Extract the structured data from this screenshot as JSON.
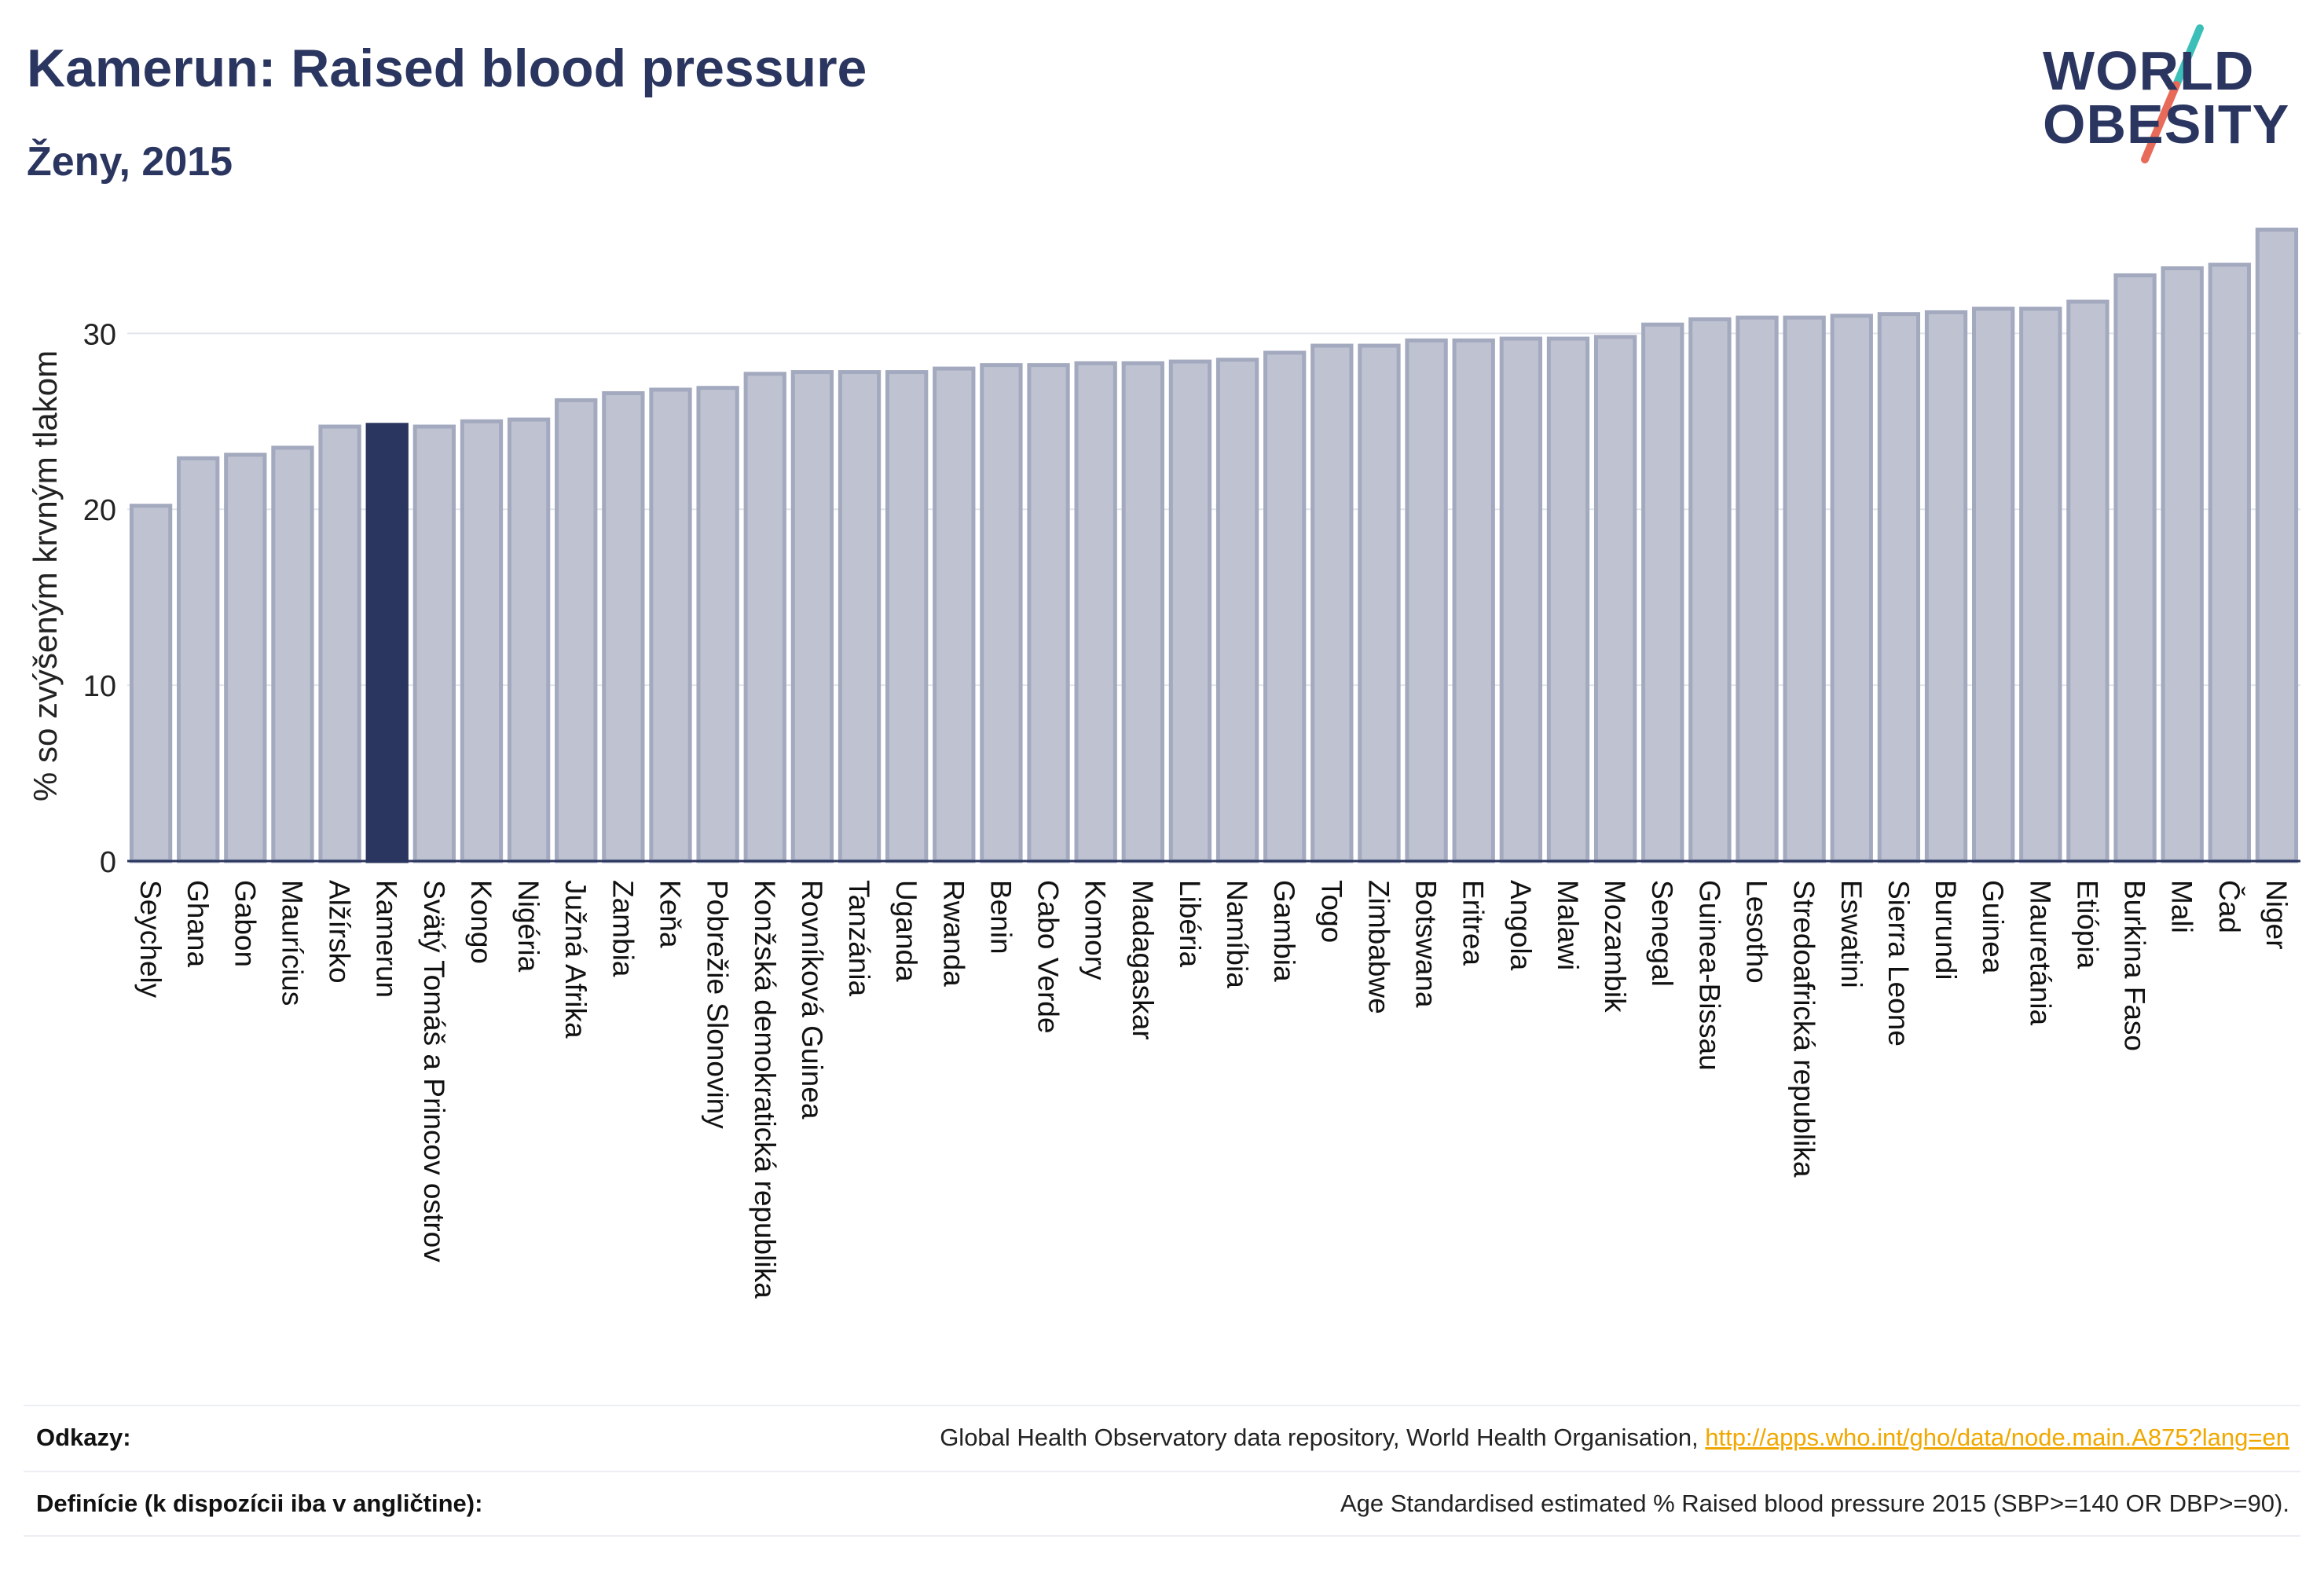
{
  "header": {
    "title": "Kamerun: Raised blood pressure",
    "subtitle": "Ženy, 2015"
  },
  "logo": {
    "line1": "WORLD",
    "line2": "OBESITY",
    "colors": {
      "text": "#2b3660",
      "slash_top": "#3bbfb8",
      "slash_bottom": "#e86b5a"
    }
  },
  "chart_data": {
    "type": "bar",
    "ylabel": "% so zvýšeným krvným tlakom",
    "xlabel": "",
    "ylim": [
      0,
      36
    ],
    "yticks": [
      0,
      10,
      20,
      30
    ],
    "grid": true,
    "highlight": "Kamerun",
    "colors": {
      "bar": "#bfc3d1",
      "bar_edge": "#a3a9be",
      "highlight": "#2b3660",
      "axis": "#2b3660",
      "grid": "#e3e5ec"
    },
    "categories": [
      "Seychely",
      "Ghana",
      "Gabon",
      "Maurícius",
      "Alžírsko",
      "Kamerun",
      "Svätý Tomáš a Princov ostrov",
      "Kongo",
      "Nigéria",
      "Južná Afrika",
      "Zambia",
      "Keňa",
      "Pobrežie Slonoviny",
      "Konžská demokratická republika",
      "Rovníková Guinea",
      "Tanzánia",
      "Uganda",
      "Rwanda",
      "Benin",
      "Cabo Verde",
      "Komory",
      "Madagaskar",
      "Libéria",
      "Namíbia",
      "Gambia",
      "Togo",
      "Zimbabwe",
      "Botswana",
      "Eritrea",
      "Angola",
      "Malawi",
      "Mozambik",
      "Senegal",
      "Guinea-Bissau",
      "Lesotho",
      "Stredoafrická republika",
      "Eswatini",
      "Sierra Leone",
      "Burundi",
      "Guinea",
      "Mauretánia",
      "Etiópia",
      "Burkina Faso",
      "Mali",
      "Čad",
      "Niger"
    ],
    "values": [
      20.2,
      22.9,
      23.1,
      23.5,
      24.7,
      24.8,
      24.7,
      25.0,
      25.1,
      26.2,
      26.6,
      26.8,
      26.9,
      27.7,
      27.8,
      27.8,
      27.8,
      28.0,
      28.2,
      28.2,
      28.3,
      28.3,
      28.4,
      28.5,
      28.9,
      29.3,
      29.3,
      29.6,
      29.6,
      29.7,
      29.7,
      29.8,
      30.5,
      30.8,
      30.9,
      30.9,
      31.0,
      31.1,
      31.2,
      31.4,
      31.4,
      31.8,
      33.3,
      33.7,
      33.9,
      35.9
    ]
  },
  "footer": {
    "references_label": "Odkazy:",
    "references_text": "Global Health Observatory data repository, World Health Organisation, ",
    "references_link": "http://apps.who.int/gho/data/node.main.A875?lang=en",
    "definitions_label": "Definície (k dispozícii iba v angličtine):",
    "definitions_text": "Age Standardised estimated % Raised blood pressure 2015 (SBP>=140 OR DBP>=90)."
  }
}
